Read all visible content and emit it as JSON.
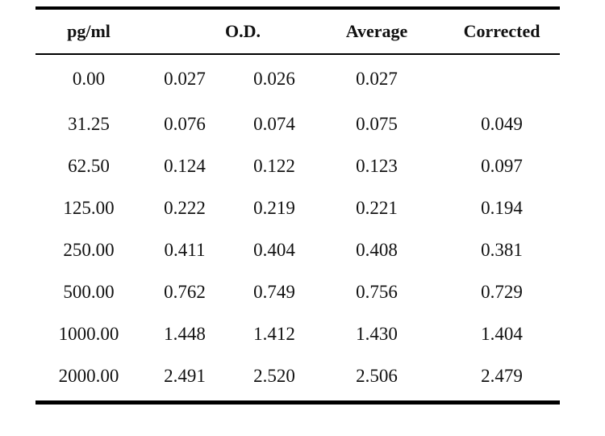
{
  "table": {
    "headers": {
      "pgml": "pg/ml",
      "od": "O.D.",
      "average": "Average",
      "corrected": "Corrected"
    },
    "rows": [
      {
        "pgml": "0.00",
        "od1": "0.027",
        "od2": "0.026",
        "average": "0.027",
        "corrected": ""
      },
      {
        "pgml": "31.25",
        "od1": "0.076",
        "od2": "0.074",
        "average": "0.075",
        "corrected": "0.049"
      },
      {
        "pgml": "62.50",
        "od1": "0.124",
        "od2": "0.122",
        "average": "0.123",
        "corrected": "0.097"
      },
      {
        "pgml": "125.00",
        "od1": "0.222",
        "od2": "0.219",
        "average": "0.221",
        "corrected": "0.194"
      },
      {
        "pgml": "250.00",
        "od1": "0.411",
        "od2": "0.404",
        "average": "0.408",
        "corrected": "0.381"
      },
      {
        "pgml": "500.00",
        "od1": "0.762",
        "od2": "0.749",
        "average": "0.756",
        "corrected": "0.729"
      },
      {
        "pgml": "1000.00",
        "od1": "1.448",
        "od2": "1.412",
        "average": "1.430",
        "corrected": "1.404"
      },
      {
        "pgml": "2000.00",
        "od1": "2.491",
        "od2": "2.520",
        "average": "2.506",
        "corrected": "2.479"
      }
    ]
  }
}
